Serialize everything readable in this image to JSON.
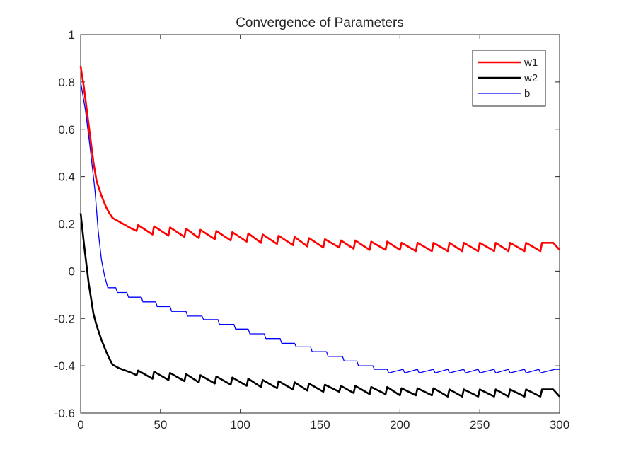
{
  "chart_data": {
    "type": "line",
    "title": "Convergence of Parameters",
    "xlabel": "",
    "ylabel": "",
    "xlim": [
      0,
      300
    ],
    "ylim": [
      -0.6,
      1
    ],
    "x_ticks": [
      0,
      50,
      100,
      150,
      200,
      250,
      300
    ],
    "x_tick_labels": [
      "0",
      "50",
      "100",
      "150",
      "200",
      "250",
      "300"
    ],
    "y_ticks": [
      -0.6,
      -0.4,
      -0.2,
      0,
      0.2,
      0.4,
      0.6,
      0.8,
      1
    ],
    "y_tick_labels": [
      "-0.6",
      "-0.4",
      "-0.2",
      "0",
      "0.2",
      "0.4",
      "0.6",
      "0.8",
      "1"
    ],
    "grid": false,
    "legend_position": "top-right",
    "series": [
      {
        "name": "w1",
        "color": "#ff0000",
        "x": [
          0,
          2,
          5,
          8,
          10,
          13,
          16,
          18,
          20,
          24,
          28,
          32,
          35,
          36,
          45,
          46,
          55,
          56,
          65,
          66,
          74,
          75,
          84,
          85,
          94,
          95,
          104,
          105,
          113,
          114,
          123,
          124,
          133,
          134,
          142,
          143,
          152,
          153,
          162,
          163,
          171,
          172,
          181,
          182,
          191,
          192,
          200,
          201,
          210,
          211,
          220,
          221,
          230,
          231,
          239,
          240,
          249,
          250,
          259,
          260,
          268,
          269,
          278,
          279,
          288,
          289,
          296,
          300
        ],
        "y": [
          0.865,
          0.78,
          0.62,
          0.46,
          0.38,
          0.32,
          0.27,
          0.245,
          0.225,
          0.21,
          0.195,
          0.18,
          0.17,
          0.195,
          0.155,
          0.19,
          0.15,
          0.185,
          0.145,
          0.18,
          0.14,
          0.175,
          0.135,
          0.17,
          0.13,
          0.165,
          0.125,
          0.16,
          0.12,
          0.155,
          0.115,
          0.15,
          0.11,
          0.145,
          0.105,
          0.14,
          0.1,
          0.135,
          0.1,
          0.13,
          0.095,
          0.13,
          0.09,
          0.125,
          0.09,
          0.125,
          0.09,
          0.12,
          0.085,
          0.12,
          0.085,
          0.12,
          0.085,
          0.12,
          0.085,
          0.12,
          0.085,
          0.12,
          0.085,
          0.12,
          0.085,
          0.12,
          0.085,
          0.12,
          0.085,
          0.12,
          0.12,
          0.09
        ]
      },
      {
        "name": "w2",
        "color": "#000000",
        "x": [
          0,
          2,
          5,
          8,
          10,
          13,
          16,
          18,
          20,
          24,
          28,
          32,
          35,
          36,
          45,
          46,
          55,
          56,
          65,
          66,
          74,
          75,
          84,
          85,
          94,
          95,
          104,
          105,
          113,
          114,
          123,
          124,
          133,
          134,
          142,
          143,
          152,
          153,
          162,
          163,
          171,
          172,
          181,
          182,
          191,
          192,
          200,
          201,
          210,
          211,
          220,
          221,
          230,
          231,
          239,
          240,
          249,
          250,
          259,
          260,
          268,
          269,
          278,
          279,
          288,
          289,
          296,
          300
        ],
        "y": [
          0.245,
          0.12,
          -0.05,
          -0.18,
          -0.23,
          -0.29,
          -0.34,
          -0.37,
          -0.395,
          -0.41,
          -0.42,
          -0.43,
          -0.44,
          -0.42,
          -0.455,
          -0.425,
          -0.46,
          -0.43,
          -0.465,
          -0.435,
          -0.47,
          -0.44,
          -0.475,
          -0.445,
          -0.48,
          -0.45,
          -0.485,
          -0.455,
          -0.49,
          -0.46,
          -0.495,
          -0.465,
          -0.5,
          -0.47,
          -0.505,
          -0.475,
          -0.51,
          -0.48,
          -0.51,
          -0.485,
          -0.515,
          -0.485,
          -0.52,
          -0.49,
          -0.52,
          -0.49,
          -0.525,
          -0.495,
          -0.525,
          -0.495,
          -0.525,
          -0.495,
          -0.53,
          -0.5,
          -0.53,
          -0.5,
          -0.53,
          -0.5,
          -0.53,
          -0.5,
          -0.53,
          -0.5,
          -0.53,
          -0.5,
          -0.53,
          -0.5,
          -0.5,
          -0.53
        ]
      },
      {
        "name": "b",
        "color": "#0000ff",
        "x": [
          0,
          3,
          6,
          9,
          11,
          13,
          15,
          17,
          18,
          22,
          23,
          29,
          30,
          38,
          39,
          47,
          48,
          56,
          57,
          66,
          67,
          76,
          77,
          86,
          87,
          96,
          97,
          105,
          106,
          115,
          116,
          125,
          126,
          134,
          135,
          144,
          145,
          154,
          155,
          164,
          165,
          173,
          174,
          183,
          184,
          192,
          193,
          202,
          203,
          211,
          212,
          221,
          222,
          230,
          231,
          240,
          241,
          249,
          250,
          259,
          260,
          268,
          269,
          278,
          279,
          287,
          288,
          297,
          298,
          300
        ],
        "y": [
          0.8,
          0.68,
          0.52,
          0.34,
          0.17,
          0.05,
          -0.02,
          -0.07,
          -0.07,
          -0.07,
          -0.09,
          -0.09,
          -0.11,
          -0.11,
          -0.13,
          -0.13,
          -0.15,
          -0.15,
          -0.17,
          -0.17,
          -0.19,
          -0.19,
          -0.205,
          -0.205,
          -0.225,
          -0.225,
          -0.245,
          -0.245,
          -0.265,
          -0.265,
          -0.285,
          -0.285,
          -0.305,
          -0.305,
          -0.32,
          -0.32,
          -0.34,
          -0.34,
          -0.36,
          -0.36,
          -0.38,
          -0.38,
          -0.4,
          -0.4,
          -0.415,
          -0.415,
          -0.43,
          -0.415,
          -0.43,
          -0.415,
          -0.43,
          -0.415,
          -0.43,
          -0.415,
          -0.43,
          -0.415,
          -0.43,
          -0.415,
          -0.43,
          -0.415,
          -0.43,
          -0.415,
          -0.43,
          -0.415,
          -0.43,
          -0.415,
          -0.43,
          -0.415,
          -0.415,
          -0.415
        ]
      }
    ]
  }
}
